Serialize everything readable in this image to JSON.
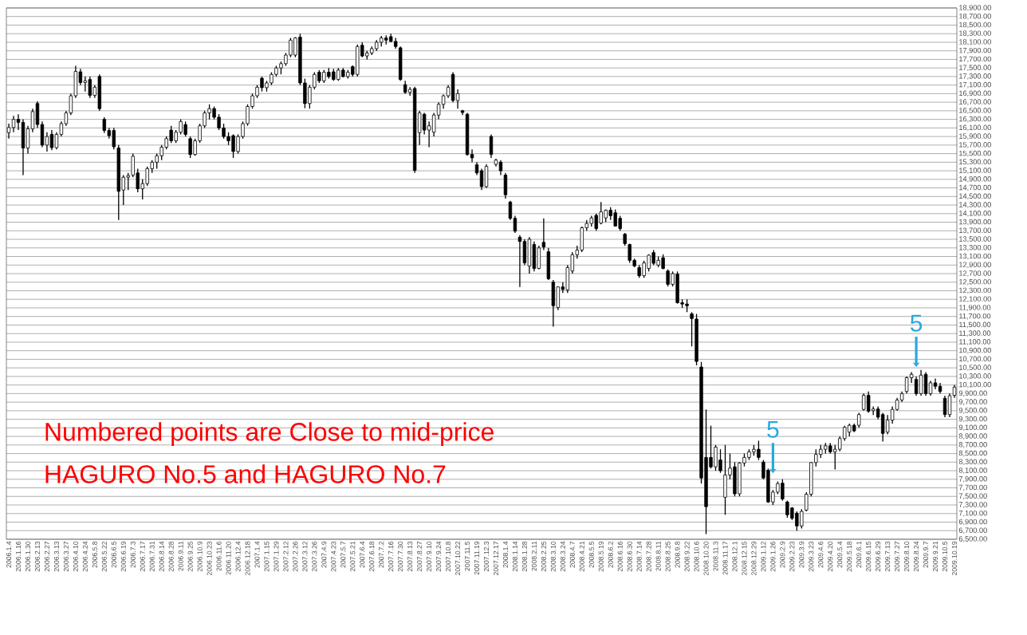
{
  "chart_data": {
    "type": "candlestick",
    "categories": [
      "2006.1.4",
      null,
      "2006.1.16",
      null,
      "2006.1.30",
      null,
      "2006.2.13",
      null,
      "2006.2.27",
      null,
      "2006.3.13",
      null,
      "2006.3.27",
      null,
      "2006.4.10",
      null,
      "2006.4.24",
      null,
      "2006.5.8",
      null,
      "2006.5.22",
      null,
      "2006.6.5",
      null,
      "2006.6.19",
      null,
      "2006.7.3",
      null,
      "2006.7.17",
      null,
      "2006.7.31",
      null,
      "2006.8.14",
      null,
      "2006.8.28",
      null,
      "2006.9.11",
      null,
      "2006.9.25",
      null,
      "2006.10.9",
      null,
      "2006.10.23",
      null,
      "2006.11.6",
      null,
      "2006.11.20",
      null,
      "2006.12.4",
      null,
      "2006.12.18",
      null,
      "2007.1.4",
      null,
      "2007.1.15",
      null,
      "2007.1.29",
      null,
      "2007.2.12",
      null,
      "2007.2.26",
      null,
      "2007.3.12",
      null,
      "2007.3.26",
      null,
      "2007.4.9",
      null,
      "2007.4.23",
      null,
      "2007.5.7",
      null,
      "2007.5.21",
      null,
      "2007.6.4",
      null,
      "2007.6.18",
      null,
      "2007.7.2",
      null,
      "2007.7.16",
      null,
      "2007.7.30",
      null,
      "2007.8.13",
      null,
      "2007.8.27",
      null,
      "2007.9.10",
      null,
      "2007.9.24",
      null,
      "2007.10.8",
      null,
      "2007.10.22",
      null,
      "2007.11.5",
      null,
      "2007.11.19",
      null,
      "2007.12.3",
      null,
      "2007.12.17",
      null,
      "2008.1.4",
      null,
      "2008.1.14",
      null,
      "2008.1.28",
      null,
      "2008.2.11",
      null,
      "2008.2.25",
      null,
      "2008.3.10",
      null,
      "2008.3.24",
      null,
      "2008.4.7",
      null,
      "2008.4.21",
      null,
      "2008.5.5",
      null,
      "2008.5.19",
      null,
      "2008.6.2",
      null,
      "2008.6.16",
      null,
      "2008.6.30",
      null,
      "2008.7.14",
      null,
      "2008.7.28",
      null,
      "2008.8.11",
      null,
      "2008.8.25",
      null,
      "2008.9.8",
      null,
      "2008.9.22",
      null,
      "2008.10.6",
      null,
      "2008.10.20",
      null,
      "2008.11.3",
      null,
      "2008.11.17",
      null,
      "2008.12.1",
      null,
      "2008.12.15",
      null,
      "2008.12.29",
      null,
      "2009.1.12",
      null,
      "2009.1.26",
      null,
      "2009.2.9",
      null,
      "2009.2.23",
      null,
      "2009.3.9",
      null,
      "2009.3.23",
      null,
      "2009.4.6",
      null,
      "2009.4.20",
      null,
      "2009.5.4",
      null,
      "2009.5.18",
      null,
      "2009.6.1",
      null,
      "2009.6.15",
      null,
      "2009.6.29",
      null,
      "2009.7.13",
      null,
      "2009.7.27",
      null,
      "2009.8.10",
      null,
      "2009.8.24",
      null,
      "2009.9.7",
      null,
      "2009.9.21",
      null,
      "2009.10.5",
      null,
      "2009.10.19"
    ],
    "ohlc": [
      [
        15990,
        16200,
        15850,
        16110
      ],
      [
        16110,
        16380,
        16000,
        16300
      ],
      [
        16300,
        16420,
        16050,
        16230
      ],
      [
        16230,
        16300,
        15000,
        15630
      ],
      [
        15630,
        16150,
        15500,
        16080
      ],
      [
        16080,
        16550,
        16000,
        16480
      ],
      [
        16670,
        16720,
        16100,
        16180
      ],
      [
        16180,
        16250,
        15650,
        15700
      ],
      [
        15700,
        16000,
        15550,
        15900
      ],
      [
        15950,
        16050,
        15580,
        15640
      ],
      [
        15640,
        16000,
        15600,
        15950
      ],
      [
        15950,
        16250,
        15900,
        16200
      ],
      [
        16200,
        16500,
        16150,
        16450
      ],
      [
        16450,
        16900,
        16400,
        16850
      ],
      [
        16850,
        17550,
        16800,
        17420
      ],
      [
        17410,
        17480,
        17100,
        17160
      ],
      [
        17160,
        17300,
        16950,
        17200
      ],
      [
        17230,
        17300,
        16800,
        16860
      ],
      [
        16860,
        17100,
        16800,
        17050
      ],
      [
        17300,
        17350,
        16500,
        16550
      ],
      [
        16300,
        16350,
        15980,
        16040
      ],
      [
        16040,
        16100,
        15850,
        15920
      ],
      [
        16040,
        16100,
        15600,
        15660
      ],
      [
        15630,
        15700,
        13950,
        14620
      ],
      [
        14650,
        15000,
        14300,
        14950
      ],
      [
        14950,
        15050,
        14650,
        14990
      ],
      [
        15000,
        15500,
        14950,
        15440
      ],
      [
        15050,
        15150,
        14600,
        14680
      ],
      [
        14680,
        14900,
        14430,
        14800
      ],
      [
        14800,
        15200,
        14750,
        15150
      ],
      [
        15150,
        15350,
        15050,
        15300
      ],
      [
        15300,
        15500,
        15150,
        15450
      ],
      [
        15450,
        15700,
        15350,
        15650
      ],
      [
        15650,
        15900,
        15600,
        15850
      ],
      [
        16050,
        16150,
        15750,
        15800
      ],
      [
        15800,
        16050,
        15750,
        16000
      ],
      [
        16000,
        16300,
        15950,
        16250
      ],
      [
        16180,
        16250,
        15900,
        15950
      ],
      [
        15850,
        15900,
        15400,
        15480
      ],
      [
        15480,
        15850,
        15450,
        15800
      ],
      [
        15800,
        16200,
        15750,
        16150
      ],
      [
        16150,
        16500,
        16100,
        16450
      ],
      [
        16450,
        16650,
        16300,
        16550
      ],
      [
        16550,
        16600,
        16300,
        16350
      ],
      [
        16350,
        16420,
        16050,
        16100
      ],
      [
        16100,
        16200,
        15850,
        15900
      ],
      [
        15900,
        16000,
        15700,
        15800
      ],
      [
        15920,
        15950,
        15400,
        15550
      ],
      [
        15550,
        15950,
        15500,
        15900
      ],
      [
        15900,
        16250,
        15850,
        16200
      ],
      [
        16200,
        16650,
        16150,
        16600
      ],
      [
        16600,
        16900,
        16550,
        16850
      ],
      [
        16850,
        17100,
        16800,
        17050
      ],
      [
        17260,
        17300,
        16950,
        17040
      ],
      [
        17040,
        17200,
        16950,
        17150
      ],
      [
        17150,
        17400,
        17100,
        17350
      ],
      [
        17350,
        17550,
        17300,
        17500
      ],
      [
        17500,
        17650,
        17350,
        17600
      ],
      [
        17600,
        17850,
        17550,
        17800
      ],
      [
        17800,
        18200,
        17750,
        18150
      ],
      [
        17800,
        18220,
        17750,
        18200
      ],
      [
        18220,
        18300,
        17100,
        17150
      ],
      [
        17150,
        17250,
        16560,
        16670
      ],
      [
        16670,
        17100,
        16550,
        17050
      ],
      [
        17050,
        17400,
        17000,
        17350
      ],
      [
        17400,
        17450,
        17150,
        17200
      ],
      [
        17200,
        17450,
        17150,
        17400
      ],
      [
        17400,
        17500,
        17250,
        17300
      ],
      [
        17410,
        17480,
        17200,
        17230
      ],
      [
        17230,
        17500,
        17200,
        17450
      ],
      [
        17450,
        17500,
        17280,
        17300
      ],
      [
        17300,
        17450,
        17250,
        17400
      ],
      [
        17530,
        17560,
        17300,
        17350
      ],
      [
        17350,
        18050,
        17300,
        18000
      ],
      [
        18030,
        18100,
        17750,
        17780
      ],
      [
        17780,
        17900,
        17700,
        17850
      ],
      [
        17850,
        18000,
        17800,
        17950
      ],
      [
        17950,
        18150,
        17900,
        18100
      ],
      [
        18100,
        18250,
        18000,
        18200
      ],
      [
        18200,
        18260,
        18050,
        18150
      ],
      [
        18230,
        18300,
        18100,
        18120
      ],
      [
        18120,
        18200,
        17950,
        18000
      ],
      [
        17970,
        18000,
        17200,
        17230
      ],
      [
        17110,
        17200,
        16900,
        16930
      ],
      [
        16930,
        17050,
        16850,
        17000
      ],
      [
        17020,
        17060,
        15050,
        15110
      ],
      [
        15990,
        16500,
        15700,
        16450
      ],
      [
        16420,
        16450,
        15950,
        16050
      ],
      [
        16050,
        16250,
        15650,
        16150
      ],
      [
        16000,
        16450,
        15900,
        16400
      ],
      [
        16400,
        16700,
        16300,
        16650
      ],
      [
        16650,
        16880,
        16550,
        16850
      ],
      [
        16850,
        17100,
        16800,
        17050
      ],
      [
        17350,
        17400,
        16700,
        16740
      ],
      [
        16740,
        17000,
        16550,
        16900
      ],
      [
        16500,
        16520,
        16400,
        16460
      ],
      [
        16420,
        16450,
        15450,
        15480
      ],
      [
        15480,
        15600,
        15300,
        15400
      ],
      [
        15240,
        15300,
        15000,
        15050
      ],
      [
        15100,
        15150,
        14650,
        14730
      ],
      [
        14730,
        15250,
        14700,
        15200
      ],
      [
        15900,
        15950,
        15400,
        15480
      ],
      [
        15250,
        15380,
        15200,
        15350
      ],
      [
        15300,
        15350,
        15000,
        15100
      ],
      [
        15000,
        15050,
        14450,
        14540
      ],
      [
        14370,
        14400,
        13950,
        13990
      ],
      [
        13990,
        14050,
        13650,
        13690
      ],
      [
        13550,
        13600,
        12390,
        13450
      ],
      [
        13450,
        13500,
        12900,
        12950
      ],
      [
        12880,
        13550,
        12700,
        13500
      ],
      [
        13380,
        13450,
        12750,
        12820
      ],
      [
        12820,
        13350,
        12800,
        13300
      ],
      [
        13430,
        13990,
        13250,
        13320
      ],
      [
        13210,
        13300,
        12550,
        12580
      ],
      [
        12500,
        12550,
        11460,
        11950
      ],
      [
        11910,
        12400,
        11850,
        12390
      ],
      [
        12390,
        12500,
        12250,
        12330
      ],
      [
        12320,
        12900,
        12250,
        12840
      ],
      [
        12760,
        13200,
        12700,
        13140
      ],
      [
        13140,
        13350,
        13050,
        13250
      ],
      [
        13250,
        13800,
        13200,
        13770
      ],
      [
        13770,
        13950,
        13700,
        13870
      ],
      [
        13870,
        14050,
        13800,
        14000
      ],
      [
        14060,
        14100,
        13700,
        13750
      ],
      [
        13880,
        14370,
        13850,
        14140
      ],
      [
        14000,
        14200,
        13900,
        14180
      ],
      [
        14180,
        14250,
        13950,
        14050
      ],
      [
        14120,
        14200,
        13800,
        13810
      ],
      [
        13990,
        14050,
        13700,
        13750
      ],
      [
        13620,
        13650,
        13350,
        13400
      ],
      [
        13380,
        13400,
        12950,
        13010
      ],
      [
        13010,
        13050,
        12850,
        12880
      ],
      [
        12840,
        12900,
        12600,
        12650
      ],
      [
        12650,
        13000,
        12600,
        12950
      ],
      [
        12820,
        13150,
        12750,
        13130
      ],
      [
        13190,
        13250,
        12900,
        12940
      ],
      [
        12900,
        13100,
        12850,
        13010
      ],
      [
        13070,
        13150,
        12800,
        12820
      ],
      [
        12760,
        12800,
        12400,
        12450
      ],
      [
        12450,
        12750,
        12400,
        12700
      ],
      [
        12690,
        12750,
        12000,
        12020
      ],
      [
        12020,
        12100,
        11900,
        11990
      ],
      [
        11990,
        12100,
        11800,
        11950
      ],
      [
        11760,
        11800,
        11000,
        11650
      ],
      [
        11640,
        11760,
        10560,
        10650
      ],
      [
        10520,
        10640,
        7800,
        7930
      ],
      [
        8410,
        9530,
        6620,
        7260
      ],
      [
        8410,
        9150,
        8150,
        8190
      ],
      [
        8190,
        8700,
        8100,
        8650
      ],
      [
        8350,
        8600,
        8050,
        8100
      ],
      [
        7480,
        8700,
        7070,
        8000
      ],
      [
        8000,
        8500,
        7900,
        8160
      ],
      [
        8190,
        8300,
        7500,
        7560
      ],
      [
        7560,
        8300,
        7500,
        8280
      ],
      [
        8280,
        8500,
        8200,
        8410
      ],
      [
        8410,
        8600,
        8350,
        8540
      ],
      [
        8540,
        8700,
        8450,
        8600
      ],
      [
        8600,
        8800,
        8350,
        8410
      ],
      [
        8300,
        8350,
        7900,
        7930
      ],
      [
        8110,
        8150,
        7350,
        7370
      ],
      [
        7370,
        7650,
        7300,
        7600
      ],
      [
        7600,
        7850,
        7550,
        7800
      ],
      [
        7810,
        7900,
        7400,
        7440
      ],
      [
        7370,
        7400,
        7000,
        7070
      ],
      [
        7230,
        7250,
        6950,
        6990
      ],
      [
        7110,
        7150,
        6700,
        6810
      ],
      [
        6810,
        7200,
        6750,
        7150
      ],
      [
        7180,
        7600,
        7150,
        7550
      ],
      [
        7550,
        8300,
        7500,
        8290
      ],
      [
        8290,
        8600,
        8200,
        8480
      ],
      [
        8480,
        8700,
        8400,
        8600
      ],
      [
        8600,
        8750,
        8500,
        8680
      ],
      [
        8680,
        8750,
        8500,
        8540
      ],
      [
        8540,
        8700,
        8130,
        8600
      ],
      [
        8600,
        8900,
        8550,
        8850
      ],
      [
        8850,
        9150,
        8800,
        9110
      ],
      [
        9000,
        9200,
        8900,
        9160
      ],
      [
        9160,
        9200,
        9000,
        9030
      ],
      [
        9160,
        9450,
        9100,
        9410
      ],
      [
        9530,
        9900,
        9500,
        9860
      ],
      [
        9860,
        9950,
        9450,
        9490
      ],
      [
        9500,
        9600,
        9400,
        9540
      ],
      [
        9540,
        9600,
        9300,
        9350
      ],
      [
        9410,
        9450,
        8780,
        8970
      ],
      [
        9000,
        9400,
        8950,
        9280
      ],
      [
        9280,
        9600,
        9200,
        9530
      ],
      [
        9530,
        9800,
        9500,
        9750
      ],
      [
        9750,
        9950,
        9700,
        9900
      ],
      [
        9950,
        10300,
        9900,
        10270
      ],
      [
        10270,
        10400,
        10150,
        10350
      ],
      [
        10230,
        10300,
        9850,
        9900
      ],
      [
        9900,
        10450,
        9850,
        10330
      ],
      [
        10350,
        10400,
        9850,
        9900
      ],
      [
        9900,
        10200,
        9850,
        10150
      ],
      [
        10150,
        10250,
        10000,
        10070
      ],
      [
        10070,
        10150,
        9900,
        9950
      ],
      [
        9790,
        9850,
        9350,
        9410
      ],
      [
        9410,
        9900,
        9350,
        9850
      ],
      [
        9860,
        10100,
        9800,
        10050
      ]
    ],
    "ylim": [
      6500,
      18900
    ],
    "yticks": [
      {
        "value": 6500,
        "label": "6,500.00"
      },
      {
        "value": 6700,
        "label": "6,700.00"
      },
      {
        "value": 6900,
        "label": "6,900.00"
      },
      {
        "value": 7100,
        "label": "7,100.00"
      },
      {
        "value": 7300,
        "label": "7,300.00"
      },
      {
        "value": 7500,
        "label": "7,500.00"
      },
      {
        "value": 7700,
        "label": "7,700.00"
      },
      {
        "value": 7900,
        "label": "7,900.00"
      },
      {
        "value": 8100,
        "label": "8,100.00"
      },
      {
        "value": 8300,
        "label": "8,300.00"
      },
      {
        "value": 8500,
        "label": "8,500.00"
      },
      {
        "value": 8700,
        "label": "8,700.00"
      },
      {
        "value": 8900,
        "label": "8,900.00"
      },
      {
        "value": 9100,
        "label": "9,100.00"
      },
      {
        "value": 9300,
        "label": "9,300.00"
      },
      {
        "value": 9500,
        "label": "9,500.00"
      },
      {
        "value": 9700,
        "label": "9,700.00"
      },
      {
        "value": 9900,
        "label": "9,900.00"
      },
      {
        "value": 10100,
        "label": "10,100.00"
      },
      {
        "value": 10300,
        "label": "10,300.00"
      },
      {
        "value": 10500,
        "label": "10,500.00"
      },
      {
        "value": 10700,
        "label": "10,700.00"
      },
      {
        "value": 10900,
        "label": "10,900.00"
      },
      {
        "value": 11100,
        "label": "11,100.00"
      },
      {
        "value": 11300,
        "label": "11,300.00"
      },
      {
        "value": 11500,
        "label": "11,500.00"
      },
      {
        "value": 11700,
        "label": "11,700.00"
      },
      {
        "value": 11900,
        "label": "11,900.00"
      },
      {
        "value": 12100,
        "label": "12,100.00"
      },
      {
        "value": 12300,
        "label": "12,300.00"
      },
      {
        "value": 12500,
        "label": "12,500.00"
      },
      {
        "value": 12700,
        "label": "12,700.00"
      },
      {
        "value": 12900,
        "label": "12,900.00"
      },
      {
        "value": 13100,
        "label": "13,100.00"
      },
      {
        "value": 13300,
        "label": "13,300.00"
      },
      {
        "value": 13500,
        "label": "13,500.00"
      },
      {
        "value": 13700,
        "label": "13,700.00"
      },
      {
        "value": 13900,
        "label": "13,900.00"
      },
      {
        "value": 14100,
        "label": "14,100.00"
      },
      {
        "value": 14300,
        "label": "14,300.00"
      },
      {
        "value": 14500,
        "label": "14,500.00"
      },
      {
        "value": 14700,
        "label": "14,700.00"
      },
      {
        "value": 14900,
        "label": "14,900.00"
      },
      {
        "value": 15100,
        "label": "15,100.00"
      },
      {
        "value": 15300,
        "label": "15,300.00"
      },
      {
        "value": 15500,
        "label": "15,500.00"
      },
      {
        "value": 15700,
        "label": "15,700.00"
      },
      {
        "value": 15900,
        "label": "15,900.00"
      },
      {
        "value": 16100,
        "label": "16,100.00"
      },
      {
        "value": 16300,
        "label": "16,300.00"
      },
      {
        "value": 16500,
        "label": "16,500.00"
      },
      {
        "value": 16700,
        "label": "16,700.00"
      },
      {
        "value": 16900,
        "label": "16,900.00"
      },
      {
        "value": 17100,
        "label": "17,100.00"
      },
      {
        "value": 17300,
        "label": "17,300.00"
      },
      {
        "value": 17500,
        "label": "17,500.00"
      },
      {
        "value": 17700,
        "label": "17,700.00"
      },
      {
        "value": 17900,
        "label": "17,900.00"
      },
      {
        "value": 18100,
        "label": "18,100.00"
      },
      {
        "value": 18300,
        "label": "18,300.00"
      },
      {
        "value": 18500,
        "label": "18,500.00"
      },
      {
        "value": 18700,
        "label": "18,700.00"
      },
      {
        "value": 18900,
        "label": "18,900.00"
      }
    ],
    "grid": "y",
    "annotations": [
      "Numbered points are Close to mid-price",
      "HAGURO No.5 and HAGURO No.7",
      {
        "text": "5",
        "x": "2009.1.26",
        "y": 8040
      },
      {
        "text": "5",
        "x": "2009.8.24",
        "y": 10520
      }
    ]
  }
}
